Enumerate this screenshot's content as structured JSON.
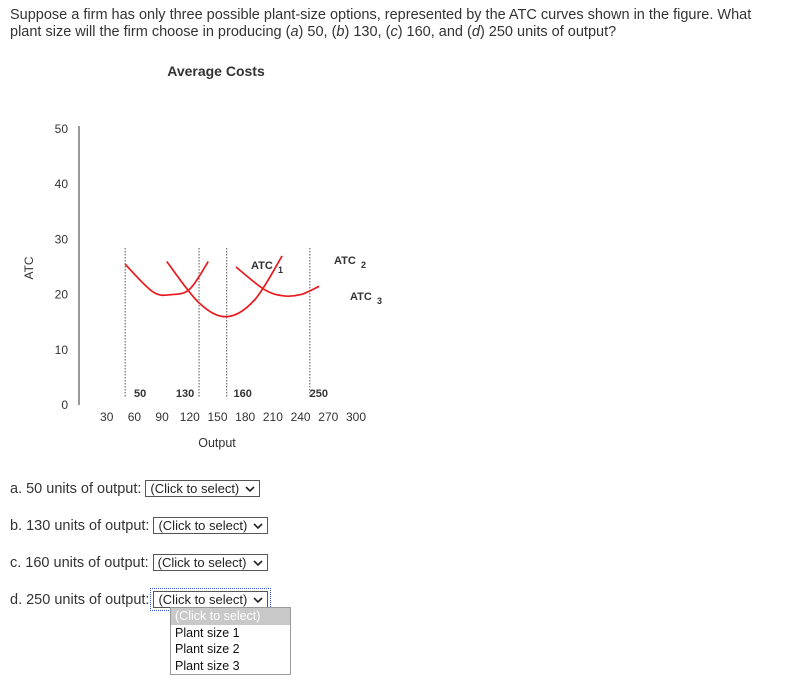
{
  "question": {
    "text_parts": [
      "Suppose a firm has only three possible plant-size options, represented by the ATC curves shown in the figure. What plant size will the firm choose in producing (",
      "a",
      ") 50, (",
      "b",
      ") 130, (",
      "c",
      ") 160, and (",
      "d",
      ") 250 units of output?"
    ]
  },
  "chart_data": {
    "type": "line",
    "title": "Average Costs",
    "xlabel": "Output",
    "ylabel": "ATC",
    "xlim": [
      0,
      300
    ],
    "ylim": [
      0,
      50
    ],
    "x_ticks": [
      "30",
      "60",
      "90",
      "120",
      "150",
      "180",
      "210",
      "240",
      "270",
      "300"
    ],
    "y_ticks": [
      "0",
      "10",
      "20",
      "30",
      "40",
      "50"
    ],
    "vertical_markers": [
      {
        "x": 50,
        "label": "50"
      },
      {
        "x": 130,
        "label": "130"
      },
      {
        "x": 160,
        "label": "160"
      },
      {
        "x": 250,
        "label": "250"
      }
    ],
    "series": [
      {
        "name": "ATC 1",
        "name_main": "ATC",
        "name_sub": "1",
        "color": "#e8191d",
        "x": [
          50,
          80,
          100,
          120,
          140
        ],
        "y": [
          25.5,
          20.5,
          20,
          21,
          26
        ]
      },
      {
        "name": "ATC 2",
        "name_main": "ATC",
        "name_sub": "2",
        "color": "#e8191d",
        "x": [
          95,
          130,
          160,
          190,
          220
        ],
        "y": [
          26,
          18.5,
          16,
          19,
          27
        ]
      },
      {
        "name": "ATC 3",
        "name_main": "ATC",
        "name_sub": "3",
        "color": "#e8191d",
        "x": [
          170,
          200,
          220,
          240,
          260
        ],
        "y": [
          25,
          21,
          19.8,
          20,
          21.5
        ]
      }
    ]
  },
  "questions": [
    {
      "label": "a. 50 units of output:",
      "value": "(Click to select)"
    },
    {
      "label": "b. 130 units of output:",
      "value": "(Click to select)"
    },
    {
      "label": "c. 160 units of output:",
      "value": "(Click to select)"
    },
    {
      "label": "d. 250 units of output:",
      "value": "(Click to select)"
    }
  ],
  "dropdown_options": [
    "(Click to select)",
    "Plant size 1",
    "Plant size 2",
    "Plant size 3"
  ]
}
